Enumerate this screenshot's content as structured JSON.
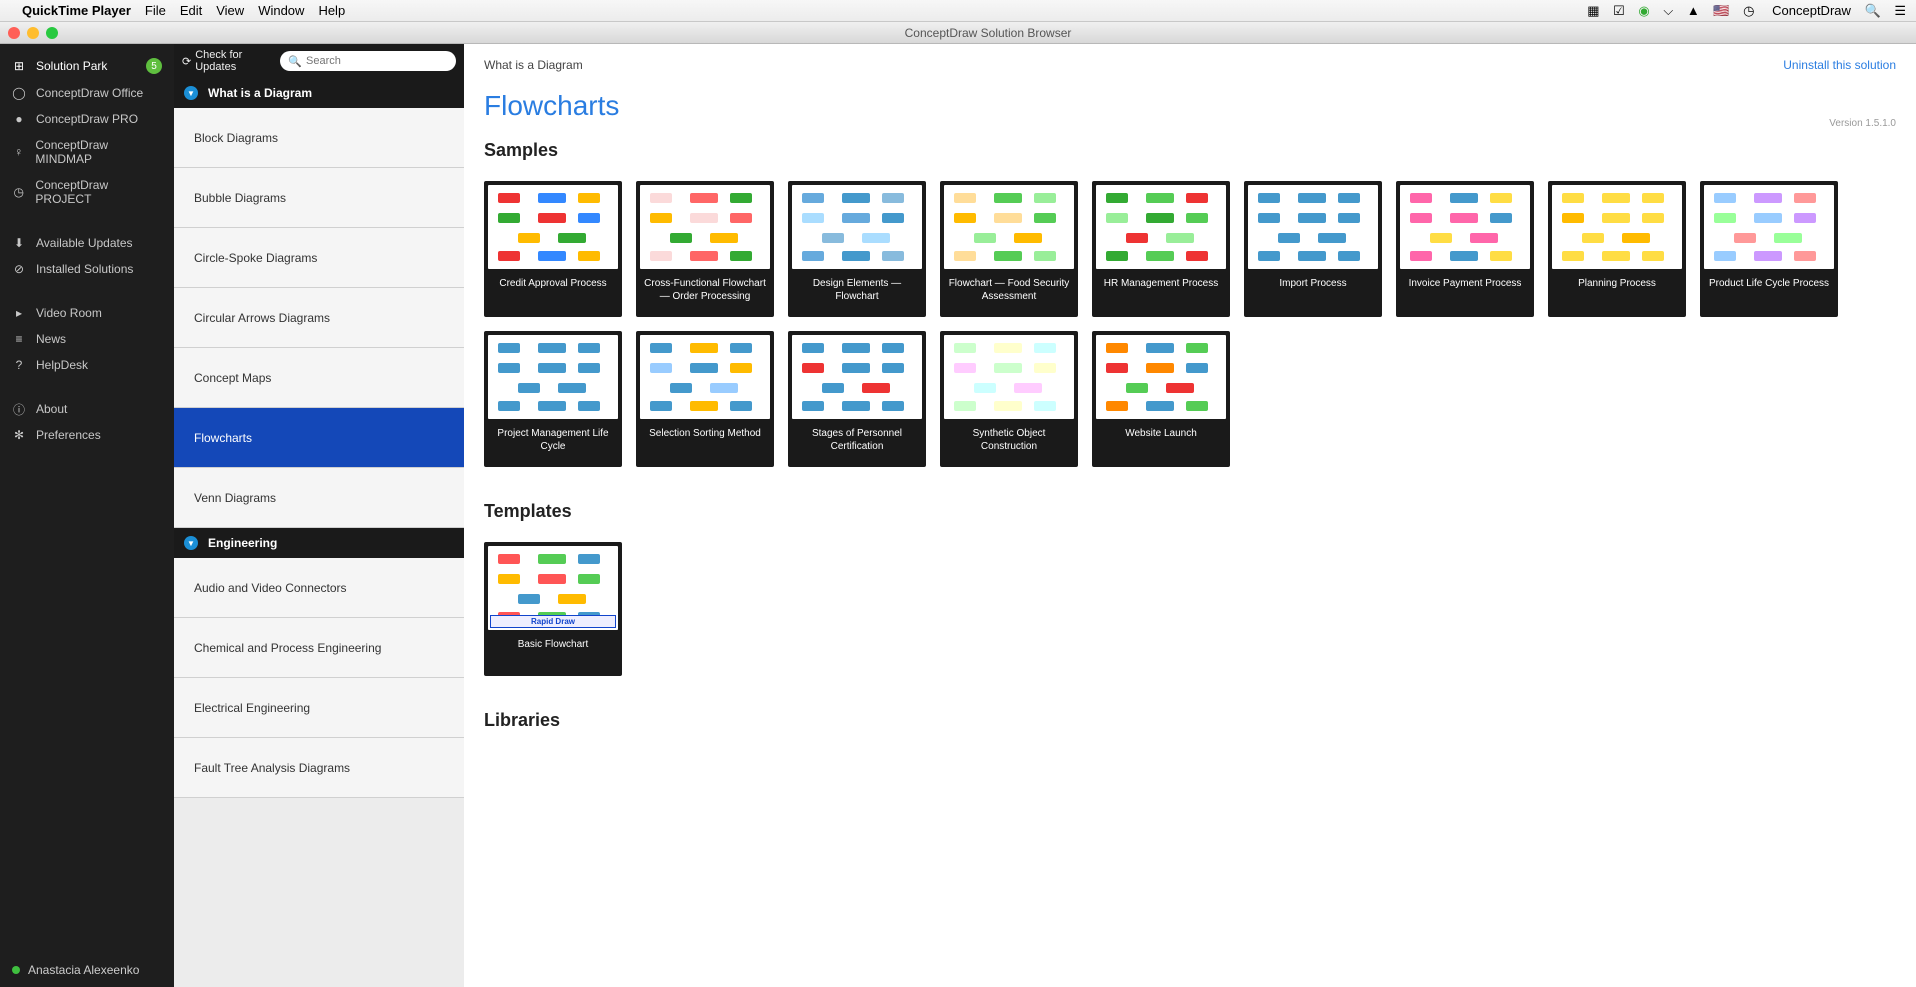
{
  "macbar": {
    "app": "QuickTime Player",
    "menus": [
      "File",
      "Edit",
      "View",
      "Window",
      "Help"
    ],
    "tray_brand": "ConceptDraw"
  },
  "window": {
    "title": "ConceptDraw Solution Browser"
  },
  "sidebar": {
    "items": [
      {
        "icon": "grid",
        "label": "Solution Park",
        "badge": "5"
      },
      {
        "icon": "circle",
        "label": "ConceptDraw Office"
      },
      {
        "icon": "dot",
        "label": "ConceptDraw PRO"
      },
      {
        "icon": "bulb",
        "label": "ConceptDraw MINDMAP"
      },
      {
        "icon": "clock",
        "label": "ConceptDraw PROJECT"
      }
    ],
    "items2": [
      {
        "icon": "down",
        "label": "Available Updates"
      },
      {
        "icon": "check",
        "label": "Installed Solutions"
      }
    ],
    "items3": [
      {
        "icon": "play",
        "label": "Video Room"
      },
      {
        "icon": "lines",
        "label": "News"
      },
      {
        "icon": "q",
        "label": "HelpDesk"
      }
    ],
    "items4": [
      {
        "icon": "info",
        "label": "About"
      },
      {
        "icon": "gear",
        "label": "Preferences"
      }
    ],
    "user": "Anastacia Alexeenko"
  },
  "cats": {
    "updates": "Check for Updates",
    "search_placeholder": "Search",
    "sections": [
      {
        "title": "What is a Diagram",
        "items": [
          "Block Diagrams",
          "Bubble Diagrams",
          "Circle-Spoke Diagrams",
          "Circular Arrows Diagrams",
          "Concept Maps",
          "Flowcharts",
          "Venn Diagrams"
        ],
        "selected": 5
      },
      {
        "title": "Engineering",
        "items": [
          "Audio and Video Connectors",
          "Chemical and Process Engineering",
          "Electrical Engineering",
          "Fault Tree Analysis Diagrams"
        ]
      }
    ]
  },
  "main": {
    "breadcrumb": "What is a Diagram",
    "uninstall": "Uninstall this solution",
    "title": "Flowcharts",
    "version": "Version 1.5.1.0",
    "sections": [
      {
        "heading": "Samples",
        "cards": [
          {
            "label": "Credit Approval Process",
            "palette": [
              "#e33",
              "#38f",
              "#fb0",
              "#3a3"
            ]
          },
          {
            "label": "Cross-Functional Flowchart — Order Processing",
            "palette": [
              "#fbdada",
              "#f66",
              "#3a3",
              "#fb0"
            ]
          },
          {
            "label": "Design Elements — Flowchart",
            "palette": [
              "#6ad",
              "#49c",
              "#8bd",
              "#adf"
            ]
          },
          {
            "label": "Flowchart — Food Security Assessment",
            "palette": [
              "#fd9",
              "#5c5",
              "#9e9",
              "#fb0"
            ]
          },
          {
            "label": "HR Management Process",
            "palette": [
              "#3a3",
              "#5c5",
              "#e33",
              "#9e9"
            ]
          },
          {
            "label": "Import Process",
            "palette": [
              "#49c",
              "#49c",
              "#49c",
              "#49c"
            ]
          },
          {
            "label": "Invoice Payment Process",
            "palette": [
              "#f6a",
              "#49c",
              "#fd4",
              "#f6a"
            ]
          },
          {
            "label": "Planning Process",
            "palette": [
              "#fd4",
              "#fd4",
              "#fd4",
              "#fb0"
            ]
          },
          {
            "label": "Product Life Cycle Process",
            "palette": [
              "#9cf",
              "#c9f",
              "#f99",
              "#9f9"
            ]
          },
          {
            "label": "Project Management Life Cycle",
            "palette": [
              "#49c",
              "#49c",
              "#49c",
              "#49c"
            ]
          },
          {
            "label": "Selection Sorting Method",
            "palette": [
              "#49c",
              "#fb0",
              "#49c",
              "#9cf"
            ]
          },
          {
            "label": "Stages of Personnel Certification",
            "palette": [
              "#49c",
              "#49c",
              "#49c",
              "#e33"
            ]
          },
          {
            "label": "Synthetic Object Construction",
            "palette": [
              "#cfc",
              "#ffc",
              "#cff",
              "#fcf"
            ]
          },
          {
            "label": "Website Launch",
            "palette": [
              "#f80",
              "#49c",
              "#5c5",
              "#e33"
            ]
          }
        ]
      },
      {
        "heading": "Templates",
        "cards": [
          {
            "label": "Basic Flowchart",
            "rapid": "Rapid Draw",
            "palette": [
              "#f55",
              "#5c5",
              "#49c",
              "#fb0"
            ]
          }
        ]
      },
      {
        "heading": "Libraries",
        "cards": []
      }
    ]
  }
}
